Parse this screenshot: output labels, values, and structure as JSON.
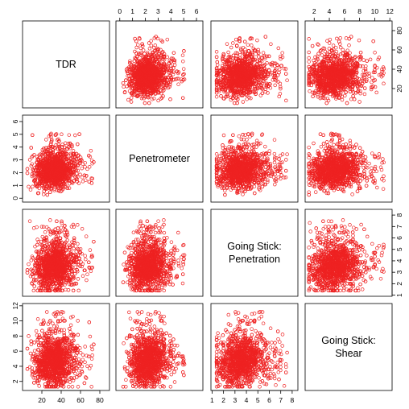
{
  "chart_data": {
    "type": "scatter",
    "layout": "scatterplot-matrix",
    "point_color": "#ee2222",
    "grid": false,
    "legend": "none",
    "variables": [
      {
        "id": "tdr",
        "label_lines": [
          "TDR"
        ],
        "range": [
          0,
          90
        ],
        "ticks": [
          20,
          40,
          60,
          80
        ]
      },
      {
        "id": "penetrometer",
        "label_lines": [
          "Penetrometer"
        ],
        "range": [
          -0.3,
          6.5
        ],
        "ticks": [
          0,
          1,
          2,
          3,
          4,
          5,
          6
        ]
      },
      {
        "id": "going_stick_penetration",
        "label_lines": [
          "Going Stick:",
          "Penetration"
        ],
        "range": [
          0.9,
          8.5
        ],
        "ticks": [
          1,
          2,
          3,
          4,
          5,
          6,
          7,
          8
        ]
      },
      {
        "id": "going_stick_shear",
        "label_lines": [
          "Going Stick:",
          "Shear"
        ],
        "range": [
          0.8,
          12.3
        ],
        "ticks": [
          2,
          4,
          6,
          8,
          10,
          12
        ]
      }
    ],
    "distribution_summary": {
      "tdr": {
        "center": 33,
        "spread": 10,
        "min": 5,
        "max": 88
      },
      "penetrometer": {
        "center": 2.2,
        "spread": 0.7,
        "min": -0.2,
        "max": 6.3
      },
      "going_stick_penetration": {
        "center": 3.5,
        "spread": 1.0,
        "min": 1.4,
        "max": 8.2
      },
      "going_stick_shear": {
        "center": 4.8,
        "spread": 1.6,
        "min": 1.3,
        "max": 12.0
      }
    },
    "points_per_panel": 1400
  }
}
